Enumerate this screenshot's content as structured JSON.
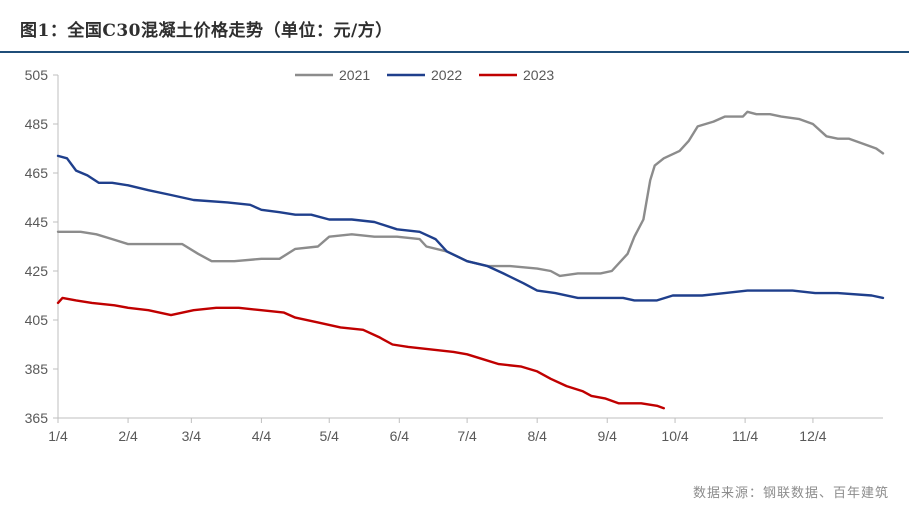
{
  "header": {
    "title": "图1：全国C30混凝土价格走势（单位：元/方）"
  },
  "footer": {
    "source": "数据来源：钢联数据、百年建筑"
  },
  "chart_data": {
    "type": "line",
    "title": "图1：全国C30混凝土价格走势（单位：元/方）",
    "xlabel": "",
    "ylabel": "",
    "ylim": [
      365,
      505
    ],
    "yticks": [
      365,
      385,
      405,
      425,
      445,
      465,
      485,
      505
    ],
    "xlim": [
      0,
      365
    ],
    "xticks": [
      {
        "label": "1/4",
        "day": 0
      },
      {
        "label": "2/4",
        "day": 31
      },
      {
        "label": "3/4",
        "day": 59
      },
      {
        "label": "4/4",
        "day": 90
      },
      {
        "label": "5/4",
        "day": 120
      },
      {
        "label": "6/4",
        "day": 151
      },
      {
        "label": "7/4",
        "day": 181
      },
      {
        "label": "8/4",
        "day": 212
      },
      {
        "label": "9/4",
        "day": 243
      },
      {
        "label": "10/4",
        "day": 273
      },
      {
        "label": "11/4",
        "day": 304
      },
      {
        "label": "12/4",
        "day": 334
      }
    ],
    "grid": false,
    "legend": "top-center",
    "series": [
      {
        "name": "2021",
        "color": "#8c8c8c",
        "points": [
          [
            0,
            441
          ],
          [
            10,
            441
          ],
          [
            17,
            440
          ],
          [
            24,
            438
          ],
          [
            31,
            436
          ],
          [
            45,
            436
          ],
          [
            55,
            436
          ],
          [
            62,
            432
          ],
          [
            68,
            429
          ],
          [
            78,
            429
          ],
          [
            90,
            430
          ],
          [
            98,
            430
          ],
          [
            105,
            434
          ],
          [
            115,
            435
          ],
          [
            120,
            439
          ],
          [
            130,
            440
          ],
          [
            140,
            439
          ],
          [
            150,
            439
          ],
          [
            160,
            438
          ],
          [
            163,
            435
          ],
          [
            172,
            433
          ],
          [
            181,
            429
          ],
          [
            190,
            427
          ],
          [
            200,
            427
          ],
          [
            212,
            426
          ],
          [
            218,
            425
          ],
          [
            222,
            423
          ],
          [
            230,
            424
          ],
          [
            240,
            424
          ],
          [
            245,
            425
          ],
          [
            252,
            432
          ],
          [
            255,
            439
          ],
          [
            259,
            446
          ],
          [
            262,
            462
          ],
          [
            264,
            468
          ],
          [
            268,
            471
          ],
          [
            275,
            474
          ],
          [
            279,
            478
          ],
          [
            283,
            484
          ],
          [
            290,
            486
          ],
          [
            295,
            488
          ],
          [
            303,
            488
          ],
          [
            305,
            490
          ],
          [
            309,
            489
          ],
          [
            315,
            489
          ],
          [
            320,
            488
          ],
          [
            328,
            487
          ],
          [
            334,
            485
          ],
          [
            340,
            480
          ],
          [
            345,
            479
          ],
          [
            350,
            479
          ],
          [
            356,
            477
          ],
          [
            362,
            475
          ],
          [
            365,
            473
          ]
        ]
      },
      {
        "name": "2022",
        "color": "#1f3f8c",
        "points": [
          [
            0,
            472
          ],
          [
            4,
            471
          ],
          [
            8,
            466
          ],
          [
            13,
            464
          ],
          [
            18,
            461
          ],
          [
            24,
            461
          ],
          [
            31,
            460
          ],
          [
            40,
            458
          ],
          [
            50,
            456
          ],
          [
            55,
            455
          ],
          [
            60,
            454
          ],
          [
            75,
            453
          ],
          [
            85,
            452
          ],
          [
            90,
            450
          ],
          [
            98,
            449
          ],
          [
            105,
            448
          ],
          [
            112,
            448
          ],
          [
            120,
            446
          ],
          [
            130,
            446
          ],
          [
            140,
            445
          ],
          [
            150,
            442
          ],
          [
            160,
            441
          ],
          [
            167,
            438
          ],
          [
            172,
            433
          ],
          [
            181,
            429
          ],
          [
            190,
            427
          ],
          [
            197,
            424
          ],
          [
            206,
            420
          ],
          [
            212,
            417
          ],
          [
            220,
            416
          ],
          [
            230,
            414
          ],
          [
            240,
            414
          ],
          [
            250,
            414
          ],
          [
            255,
            413
          ],
          [
            265,
            413
          ],
          [
            272,
            415
          ],
          [
            285,
            415
          ],
          [
            295,
            416
          ],
          [
            305,
            417
          ],
          [
            315,
            417
          ],
          [
            325,
            417
          ],
          [
            335,
            416
          ],
          [
            345,
            416
          ],
          [
            360,
            415
          ],
          [
            365,
            414
          ]
        ]
      },
      {
        "name": "2023",
        "color": "#c00000",
        "points": [
          [
            0,
            412
          ],
          [
            2,
            414
          ],
          [
            8,
            413
          ],
          [
            15,
            412
          ],
          [
            25,
            411
          ],
          [
            31,
            410
          ],
          [
            40,
            409
          ],
          [
            50,
            407
          ],
          [
            60,
            409
          ],
          [
            70,
            410
          ],
          [
            80,
            410
          ],
          [
            90,
            409
          ],
          [
            100,
            408
          ],
          [
            105,
            406
          ],
          [
            115,
            404
          ],
          [
            125,
            402
          ],
          [
            135,
            401
          ],
          [
            142,
            398
          ],
          [
            148,
            395
          ],
          [
            155,
            394
          ],
          [
            165,
            393
          ],
          [
            175,
            392
          ],
          [
            181,
            391
          ],
          [
            188,
            389
          ],
          [
            195,
            387
          ],
          [
            205,
            386
          ],
          [
            212,
            384
          ],
          [
            218,
            381
          ],
          [
            225,
            378
          ],
          [
            232,
            376
          ],
          [
            236,
            374
          ],
          [
            242,
            373
          ],
          [
            248,
            371
          ],
          [
            258,
            371
          ],
          [
            265,
            370
          ],
          [
            268,
            369
          ]
        ]
      }
    ]
  }
}
